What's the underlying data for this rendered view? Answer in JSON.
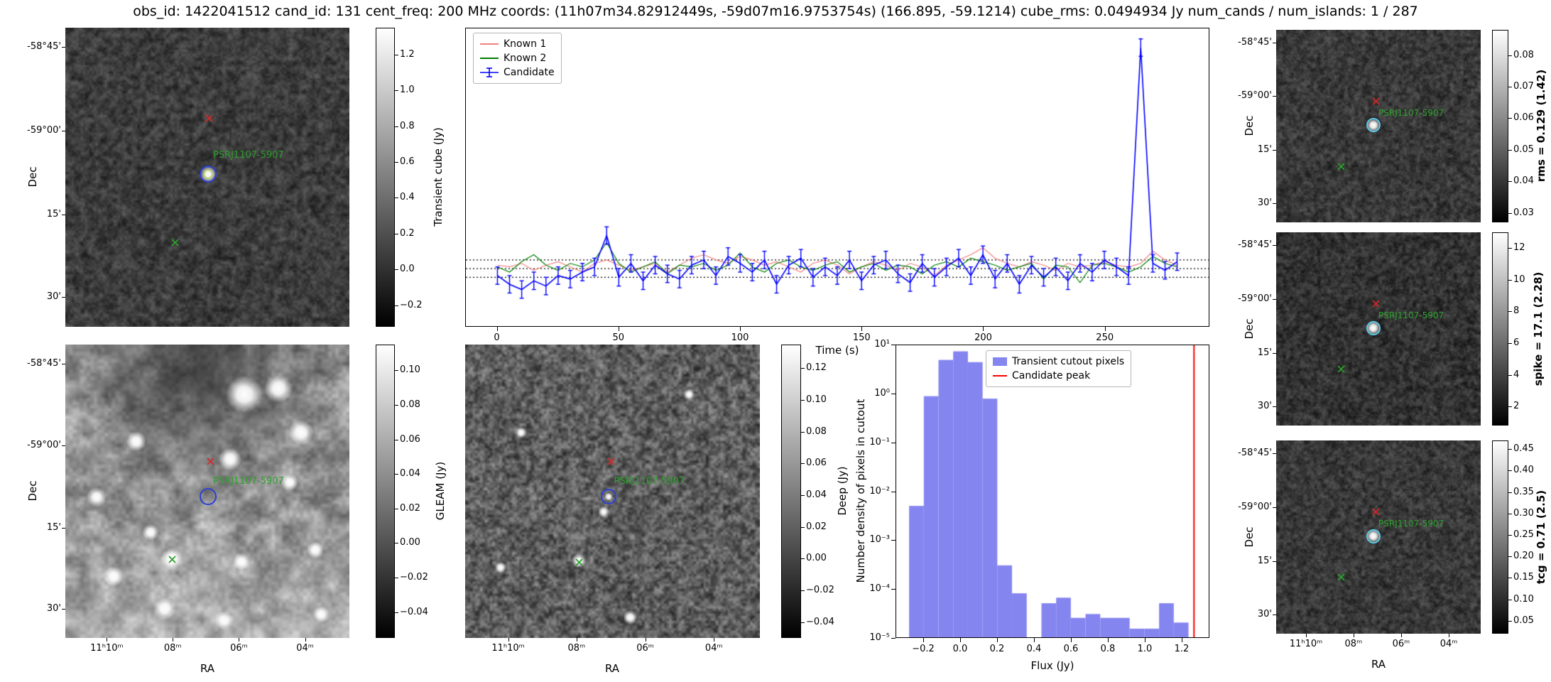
{
  "figure": {
    "title": "obs_id: 1422041512 cand_id: 131 cent_freq: 200 MHz coords: (11h07m34.82912449s, -59d07m16.9753754s) (166.895, -59.1214) cube_rms: 0.0494934 Jy num_cands / num_islands: 1 / 287",
    "source_label": "PSRJ1107-5907",
    "colors": {
      "known1": "#f08080",
      "known2": "#008000",
      "candidate": "#0000ff",
      "hist_bar": "#8585f0",
      "peak_line": "#ff0000",
      "red_x_marker": "#d62728",
      "green_x_marker": "#2ca02c",
      "circle_blue": "#2b3fd6",
      "circle_cyan": "#58c8e6"
    }
  },
  "axes_common": {
    "dec_label": "Dec",
    "ra_label": "RA",
    "dec_ticks": [
      "-58°45'",
      "-59°00'",
      "15'",
      "30'"
    ],
    "ra_ticks": [
      "11ʰ10ᵐ",
      "08ᵐ",
      "06ᵐ",
      "04ᵐ"
    ]
  },
  "cutouts": {
    "transient": {
      "colorbar_label": "Transient cube (Jy)",
      "tick_labels": [
        "1.2",
        "1.0",
        "0.8",
        "0.6",
        "0.4",
        "0.2",
        "0.0",
        "−0.2"
      ],
      "tick_values": [
        1.2,
        1.0,
        0.8,
        0.6,
        0.4,
        0.2,
        0.0,
        -0.2
      ],
      "vmin": -0.32,
      "vmax": 1.35
    },
    "gleam": {
      "colorbar_label": "GLEAM (Jy)",
      "tick_labels": [
        "0.10",
        "0.08",
        "0.06",
        "0.04",
        "0.02",
        "0.00",
        "−0.02",
        "−0.04"
      ],
      "tick_values": [
        0.1,
        0.08,
        0.06,
        0.04,
        0.02,
        0.0,
        -0.02,
        -0.04
      ],
      "vmin": -0.055,
      "vmax": 0.115
    },
    "deep": {
      "colorbar_label": "Deep (Jy)",
      "tick_labels": [
        "0.12",
        "0.10",
        "0.08",
        "0.06",
        "0.04",
        "0.02",
        "0.00",
        "−0.02",
        "−0.04"
      ],
      "tick_values": [
        0.12,
        0.1,
        0.08,
        0.06,
        0.04,
        0.02,
        0.0,
        -0.02,
        -0.04
      ],
      "vmin": -0.05,
      "vmax": 0.135
    },
    "rms": {
      "colorbar_label": "rms = 0.129 (1.42)",
      "tick_labels": [
        "0.08",
        "0.07",
        "0.06",
        "0.05",
        "0.04",
        "0.03"
      ],
      "tick_values": [
        0.08,
        0.07,
        0.06,
        0.05,
        0.04,
        0.03
      ],
      "vmin": 0.027,
      "vmax": 0.088
    },
    "spike": {
      "colorbar_label": "spike = 17.1 (2.28)",
      "tick_labels": [
        "12",
        "10",
        "8",
        "6",
        "4",
        "2"
      ],
      "tick_values": [
        12,
        10,
        8,
        6,
        4,
        2
      ],
      "vmin": 0.8,
      "vmax": 13
    },
    "tcg": {
      "colorbar_label": "tcg = 0.71 (2.5)",
      "tick_labels": [
        "0.45",
        "0.40",
        "0.35",
        "0.30",
        "0.25",
        "0.20",
        "0.15",
        "0.10",
        "0.05"
      ],
      "tick_values": [
        0.45,
        0.4,
        0.35,
        0.3,
        0.25,
        0.2,
        0.15,
        0.1,
        0.05
      ],
      "vmin": 0.02,
      "vmax": 0.47
    }
  },
  "chart_data": [
    {
      "type": "line",
      "title": "",
      "xlabel": "Time (s)",
      "ylabel": "",
      "xlim": [
        -13,
        293
      ],
      "ylim": [
        -0.33,
        1.38
      ],
      "x_ticks": [
        0,
        50,
        100,
        150,
        200,
        250
      ],
      "x_tick_labels": [
        "0",
        "50",
        "100",
        "150",
        "200",
        "250"
      ],
      "dotted_lines": [
        0.05,
        0.0,
        -0.05
      ],
      "x_start": 0,
      "x_step": 5,
      "legend_position": "upper left",
      "series": [
        {
          "name": "Known 1",
          "color": "#f08080",
          "values": [
            0.02,
            0.01,
            0.03,
            -0.01,
            0.02,
            0.04,
            0.01,
            -0.02,
            0.03,
            0.05,
            0.02,
            -0.01,
            0.01,
            0.03,
            -0.02,
            0.02,
            0.06,
            0.08,
            0.05,
            0.03,
            0.07,
            0.05,
            0.02,
            0.04,
            0.01,
            -0.02,
            0.03,
            0.05,
            0.02,
            -0.03,
            0.01,
            0.04,
            0.02,
            -0.01,
            0.03,
            0.01,
            -0.04,
            0.02,
            0.05,
            0.08,
            0.12,
            0.06,
            0.03,
            0.01,
            0.04,
            0.02,
            -0.01,
            0.03,
            0.01,
            0.02,
            0.04,
            0.02,
            0.01,
            0.03,
            0.1,
            0.05,
            0.02
          ]
        },
        {
          "name": "Known 2",
          "color": "#008000",
          "values": [
            0.01,
            -0.02,
            0.04,
            0.08,
            0.02,
            -0.01,
            0.03,
            0.01,
            0.05,
            0.15,
            0.03,
            -0.02,
            0.01,
            0.04,
            -0.03,
            0.02,
            0.01,
            0.03,
            -0.01,
            0.02,
            0.09,
            0.01,
            -0.02,
            0.03,
            0.05,
            0.01,
            -0.01,
            0.02,
            0.04,
            -0.02,
            0.01,
            0.03,
            -0.01,
            0.02,
            0.01,
            -0.03,
            0.02,
            0.04,
            0.01,
            0.06,
            0.04,
            0.02,
            -0.01,
            0.01,
            0.03,
            -0.06,
            0.02,
            0.01,
            -0.08,
            0.02,
            0.03,
            0.01,
            -0.02,
            0.01,
            0.07,
            0.03,
            0.01
          ]
        },
        {
          "name": "Candidate",
          "color": "#0000ff",
          "yerr": 0.05,
          "values": [
            -0.04,
            -0.09,
            -0.12,
            -0.07,
            -0.1,
            -0.04,
            -0.06,
            -0.02,
            0.01,
            0.19,
            -0.05,
            0.03,
            -0.07,
            0.02,
            -0.03,
            -0.06,
            0.02,
            0.05,
            -0.04,
            0.07,
            0.03,
            -0.02,
            0.05,
            -0.09,
            0.02,
            0.06,
            -0.05,
            0.01,
            -0.04,
            0.05,
            -0.07,
            0.02,
            0.05,
            -0.03,
            -0.08,
            0.03,
            -0.05,
            0.01,
            0.06,
            -0.04,
            0.08,
            -0.06,
            0.03,
            -0.09,
            0.02,
            -0.05,
            0.01,
            -0.07,
            0.03,
            -0.02,
            0.05,
            0.01,
            -0.04,
            1.27,
            0.03,
            -0.01,
            0.04
          ]
        }
      ]
    },
    {
      "type": "bar",
      "xlabel": "Flux (Jy)",
      "ylabel": "Number density of pixels in cutout",
      "yscale": "log",
      "ylim": [
        1e-05,
        10
      ],
      "xlim": [
        -0.35,
        1.35
      ],
      "x_ticks": [
        -0.2,
        0.0,
        0.2,
        0.4,
        0.6,
        0.8,
        1.0,
        1.2
      ],
      "x_tick_labels": [
        "−0.2",
        "0.0",
        "0.2",
        "0.4",
        "0.6",
        "0.8",
        "1.0",
        "1.2"
      ],
      "y_tick_labels": [
        "10¹",
        "10⁰",
        "10⁻¹",
        "10⁻²",
        "10⁻³",
        "10⁻⁴",
        "10⁻⁵"
      ],
      "bin_edges": [
        -0.28,
        -0.2,
        -0.12,
        -0.04,
        0.04,
        0.12,
        0.2,
        0.28,
        0.36,
        0.44,
        0.52,
        0.6,
        0.68,
        0.76,
        0.84,
        0.92,
        1.0,
        1.08,
        1.16,
        1.24
      ],
      "values": [
        0.005,
        0.9,
        5,
        7.5,
        4.5,
        0.8,
        0.0003,
        8e-05,
        0,
        5e-05,
        6.5e-05,
        2.5e-05,
        3e-05,
        2.5e-05,
        2.5e-05,
        1.5e-05,
        1.5e-05,
        5e-05,
        2e-05
      ],
      "candidate_peak": 1.27,
      "legend": [
        "Transient cutout pixels",
        "Candidate peak"
      ]
    }
  ]
}
